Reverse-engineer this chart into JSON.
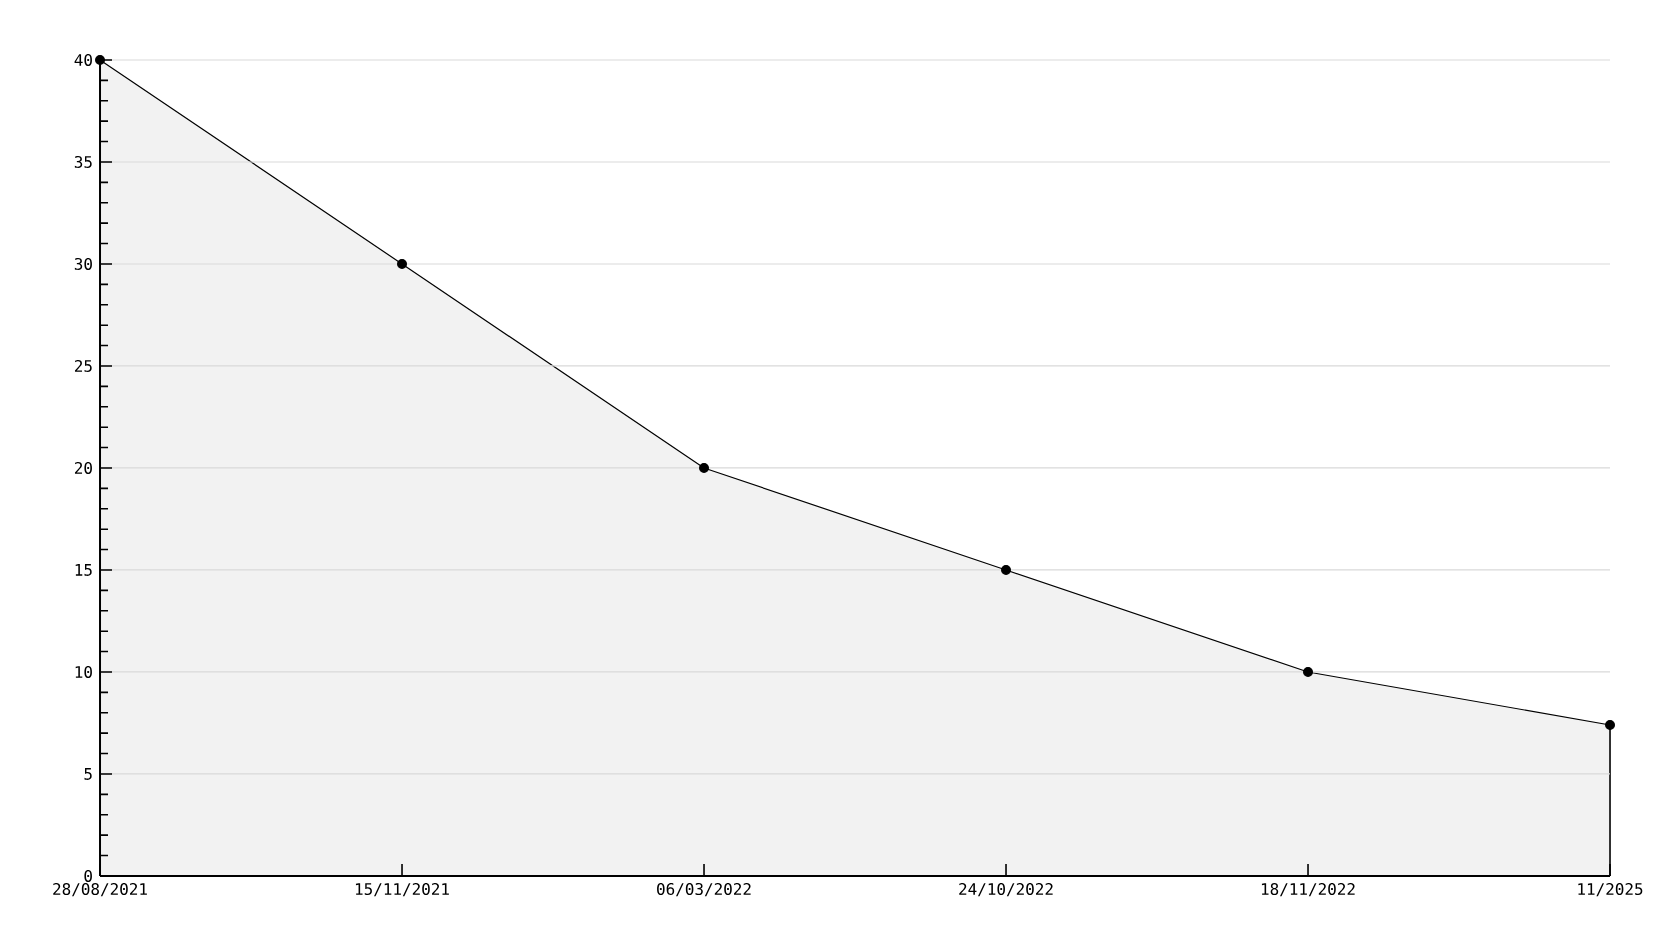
{
  "chart_data": {
    "type": "area",
    "categories": [
      "28/08/2021",
      "15/11/2021",
      "06/03/2022",
      "24/10/2022",
      "18/11/2022",
      "11/2025"
    ],
    "values": [
      40,
      30,
      20,
      15,
      10,
      7.4
    ],
    "color": "#f2f2f2",
    "ylim": [
      0,
      40
    ],
    "yticks": [
      0,
      5,
      10,
      15,
      20,
      25,
      30,
      35,
      40
    ],
    "grid": "y",
    "marker": "circle"
  }
}
